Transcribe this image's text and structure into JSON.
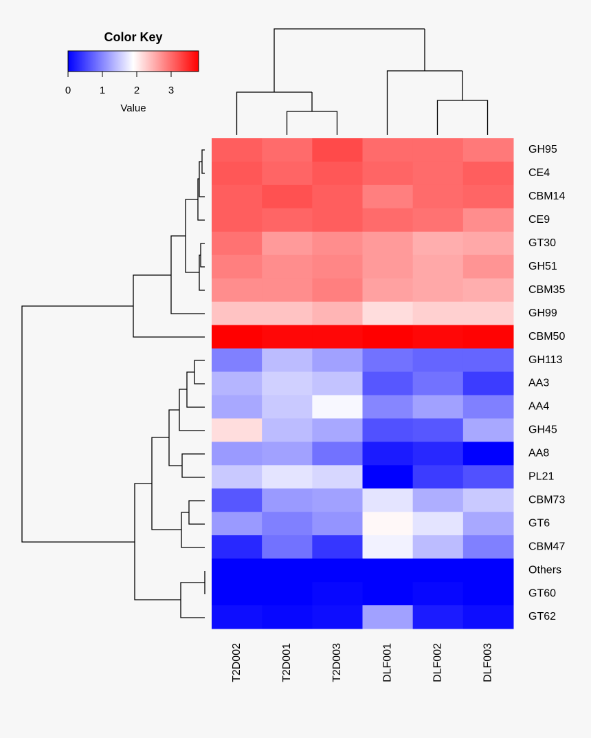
{
  "chart_data": {
    "type": "heatmap",
    "columns": [
      "T2D002",
      "T2D001",
      "T2D003",
      "DLF001",
      "DLF002",
      "DLF003"
    ],
    "rows": [
      "GH95",
      "CE4",
      "CBM14",
      "CE9",
      "GT30",
      "GH51",
      "CBM35",
      "GH99",
      "CBM50",
      "GH113",
      "AA3",
      "AA4",
      "GH45",
      "AA8",
      "PL21",
      "CBM73",
      "GT6",
      "CBM47",
      "Others",
      "GT60",
      "GT62"
    ],
    "values": [
      [
        3.1,
        3.0,
        3.25,
        3.0,
        3.0,
        2.9
      ],
      [
        3.15,
        3.05,
        3.15,
        3.05,
        3.0,
        3.1
      ],
      [
        3.1,
        3.2,
        3.1,
        2.85,
        3.0,
        3.05
      ],
      [
        3.1,
        3.05,
        3.1,
        3.0,
        2.95,
        2.75
      ],
      [
        2.95,
        2.65,
        2.75,
        2.65,
        2.5,
        2.55
      ],
      [
        2.85,
        2.75,
        2.8,
        2.65,
        2.55,
        2.7
      ],
      [
        2.75,
        2.75,
        2.85,
        2.6,
        2.55,
        2.5
      ],
      [
        2.35,
        2.35,
        2.45,
        2.15,
        2.25,
        2.25
      ],
      [
        3.8,
        3.75,
        3.75,
        3.8,
        3.75,
        3.78
      ],
      [
        0.95,
        1.4,
        1.2,
        0.85,
        0.75,
        0.75
      ],
      [
        1.35,
        1.55,
        1.45,
        0.65,
        0.85,
        0.45
      ],
      [
        1.25,
        1.5,
        1.85,
        1.0,
        1.2,
        0.95
      ],
      [
        2.15,
        1.4,
        1.25,
        0.6,
        0.65,
        1.25
      ],
      [
        1.15,
        1.2,
        0.85,
        0.2,
        0.3,
        0.0
      ],
      [
        1.5,
        1.7,
        1.6,
        0.0,
        0.45,
        0.6
      ],
      [
        0.65,
        1.15,
        1.2,
        1.7,
        1.3,
        1.5
      ],
      [
        1.15,
        0.95,
        1.1,
        1.95,
        1.7,
        1.25
      ],
      [
        0.3,
        0.85,
        0.4,
        1.8,
        1.4,
        0.95
      ],
      [
        0.0,
        0.0,
        0.0,
        0.0,
        0.0,
        0.0
      ],
      [
        0.0,
        0.0,
        0.05,
        0.0,
        0.05,
        0.0
      ],
      [
        0.1,
        0.05,
        0.1,
        1.2,
        0.2,
        0.1
      ]
    ],
    "color_key": {
      "title": "Color Key",
      "xlabel": "Value",
      "xlim": [
        0,
        3.8
      ],
      "xticks": [
        0,
        1,
        2,
        3
      ],
      "colors": [
        "#0000ff",
        "#ffffff",
        "#ff0000"
      ]
    }
  }
}
